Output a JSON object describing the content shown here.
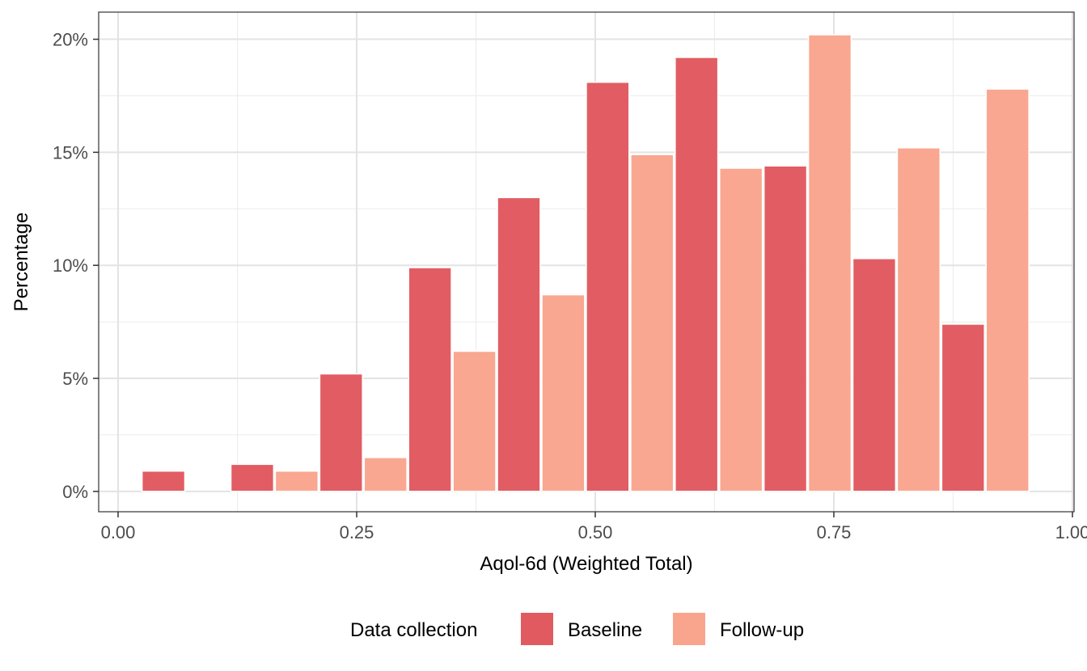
{
  "chart_data": {
    "type": "bar",
    "title": "",
    "xlabel": "Aqol-6d (Weighted Total)",
    "ylabel": "Percentage",
    "xlim": [
      0,
      1
    ],
    "ylim": [
      -0.9,
      21.2
    ],
    "x_ticks": [
      0,
      0.25,
      0.5,
      0.75,
      1
    ],
    "x_tick_labels": [
      "0.00",
      "0.25",
      "0.50",
      "0.75",
      "1.00"
    ],
    "y_ticks": [
      0,
      5,
      10,
      15,
      20
    ],
    "y_tick_labels": [
      "0%",
      "5%",
      "10%",
      "15%",
      "20%"
    ],
    "grid": true,
    "bin_width": 0.0931,
    "legend": {
      "title": "Data collection",
      "position": "bottom"
    },
    "series": [
      {
        "name": "Baseline",
        "color": "#e05a60",
        "bins": [
          {
            "x": 0.0708,
            "value": 0.9
          },
          {
            "x": 0.1639,
            "value": 1.2
          },
          {
            "x": 0.257,
            "value": 5.2
          },
          {
            "x": 0.3501,
            "value": 9.9
          },
          {
            "x": 0.4432,
            "value": 13.0
          },
          {
            "x": 0.5363,
            "value": 18.1
          },
          {
            "x": 0.6294,
            "value": 19.2
          },
          {
            "x": 0.7225,
            "value": 14.4
          },
          {
            "x": 0.8156,
            "value": 10.3
          },
          {
            "x": 0.9087,
            "value": 7.4
          }
        ]
      },
      {
        "name": "Follow-up",
        "color": "#f9a58e",
        "bins": [
          {
            "x": 0.0708,
            "value": 0.0
          },
          {
            "x": 0.1639,
            "value": 0.0
          },
          {
            "x": 0.257,
            "value": 0.9
          },
          {
            "x": 0.3501,
            "value": 1.5
          },
          {
            "x": 0.4432,
            "value": 6.2
          },
          {
            "x": 0.5363,
            "value": 8.7
          },
          {
            "x": 0.6294,
            "value": 14.9
          },
          {
            "x": 0.7225,
            "value": 14.3
          },
          {
            "x": 0.8156,
            "value": 20.2
          },
          {
            "x": 0.9087,
            "value": 15.2
          },
          {
            "x": 1.0018,
            "value": 17.8
          }
        ]
      }
    ]
  }
}
